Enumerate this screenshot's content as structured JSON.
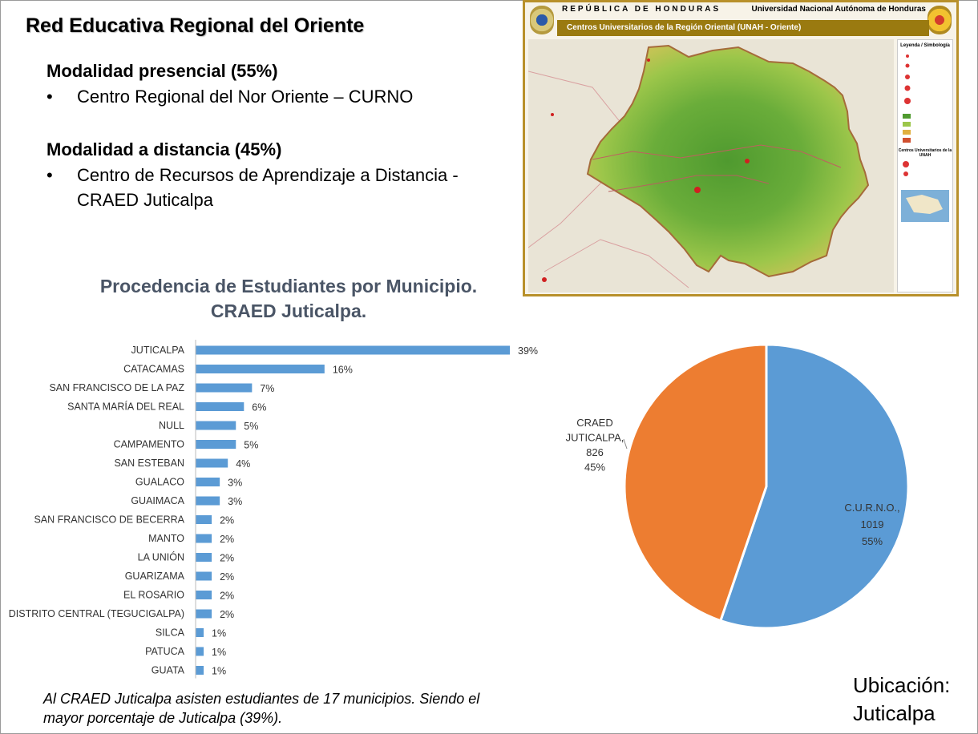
{
  "slide": {
    "title": "Red Educativa Regional del Oriente",
    "presencial_heading": "Modalidad presencial (55%)",
    "presencial_items": [
      "Centro Regional del Nor Oriente – CURNO"
    ],
    "distancia_heading": "Modalidad a distancia (45%)",
    "distancia_items": [
      "Centro de Recursos de Aprendizaje a Distancia - CRAED Juticalpa"
    ],
    "bullet_glyph": "•",
    "chart_title_line1": "Procedencia de Estudiantes por Municipio.",
    "chart_title_line2": "CRAED Juticalpa.",
    "footnote": "Al CRAED Juticalpa asisten estudiantes de 17 municipios. Siendo el mayor porcentaje de Juticalpa (39%).",
    "location_line1": "Ubicación:",
    "location_line2": "Juticalpa"
  },
  "map": {
    "country": "REPÚBLICA DE HONDURAS",
    "university": "Universidad Nacional Autónoma de Honduras",
    "banner": "Centros Universitarios de la Región Oriental (UNAH - Oriente)",
    "legend_title": "Leyenda / Simbología",
    "legend_sub": "Centros Universitarios de la UNAH"
  },
  "colors": {
    "bar": "#5b9bd5",
    "pie_curno": "#5b9bd5",
    "pie_craed": "#ed7d31",
    "chart_title": "#4a5566",
    "map_border": "#b8902a"
  },
  "chart_data": [
    {
      "type": "bar",
      "orientation": "horizontal",
      "categories": [
        "JUTICALPA",
        "CATACAMAS",
        "SAN FRANCISCO DE LA PAZ",
        "SANTA MARÍA DEL REAL",
        "NULL",
        "CAMPAMENTO",
        "SAN ESTEBAN",
        "GUALACO",
        "GUAIMACA",
        "SAN FRANCISCO DE BECERRA",
        "MANTO",
        "LA UNIÓN",
        "GUARIZAMA",
        "EL ROSARIO",
        "DISTRITO CENTRAL (TEGUCIGALPA)",
        "SILCA",
        "PATUCA",
        "GUATA"
      ],
      "values": [
        39,
        16,
        7,
        6,
        5,
        5,
        4,
        3,
        3,
        2,
        2,
        2,
        2,
        2,
        2,
        1,
        1,
        1
      ],
      "value_labels": [
        "39%",
        "16%",
        "7%",
        "6%",
        "5%",
        "5%",
        "4%",
        "3%",
        "3%",
        "2%",
        "2%",
        "2%",
        "2%",
        "2%",
        "2%",
        "1%",
        "1%",
        "1%"
      ],
      "title": "Procedencia de Estudiantes por Municipio. CRAED Juticalpa.",
      "xlim": [
        0,
        40
      ]
    },
    {
      "type": "pie",
      "slices": [
        {
          "label": "C.U.R.N.O.,",
          "value": 1019,
          "value_label": "1019",
          "percent": "55%"
        },
        {
          "label": "CRAED JUTICALPA,",
          "label_lines": [
            "CRAED",
            "JUTICALPA,"
          ],
          "value": 826,
          "value_label": "826",
          "percent": "45%"
        }
      ]
    }
  ]
}
